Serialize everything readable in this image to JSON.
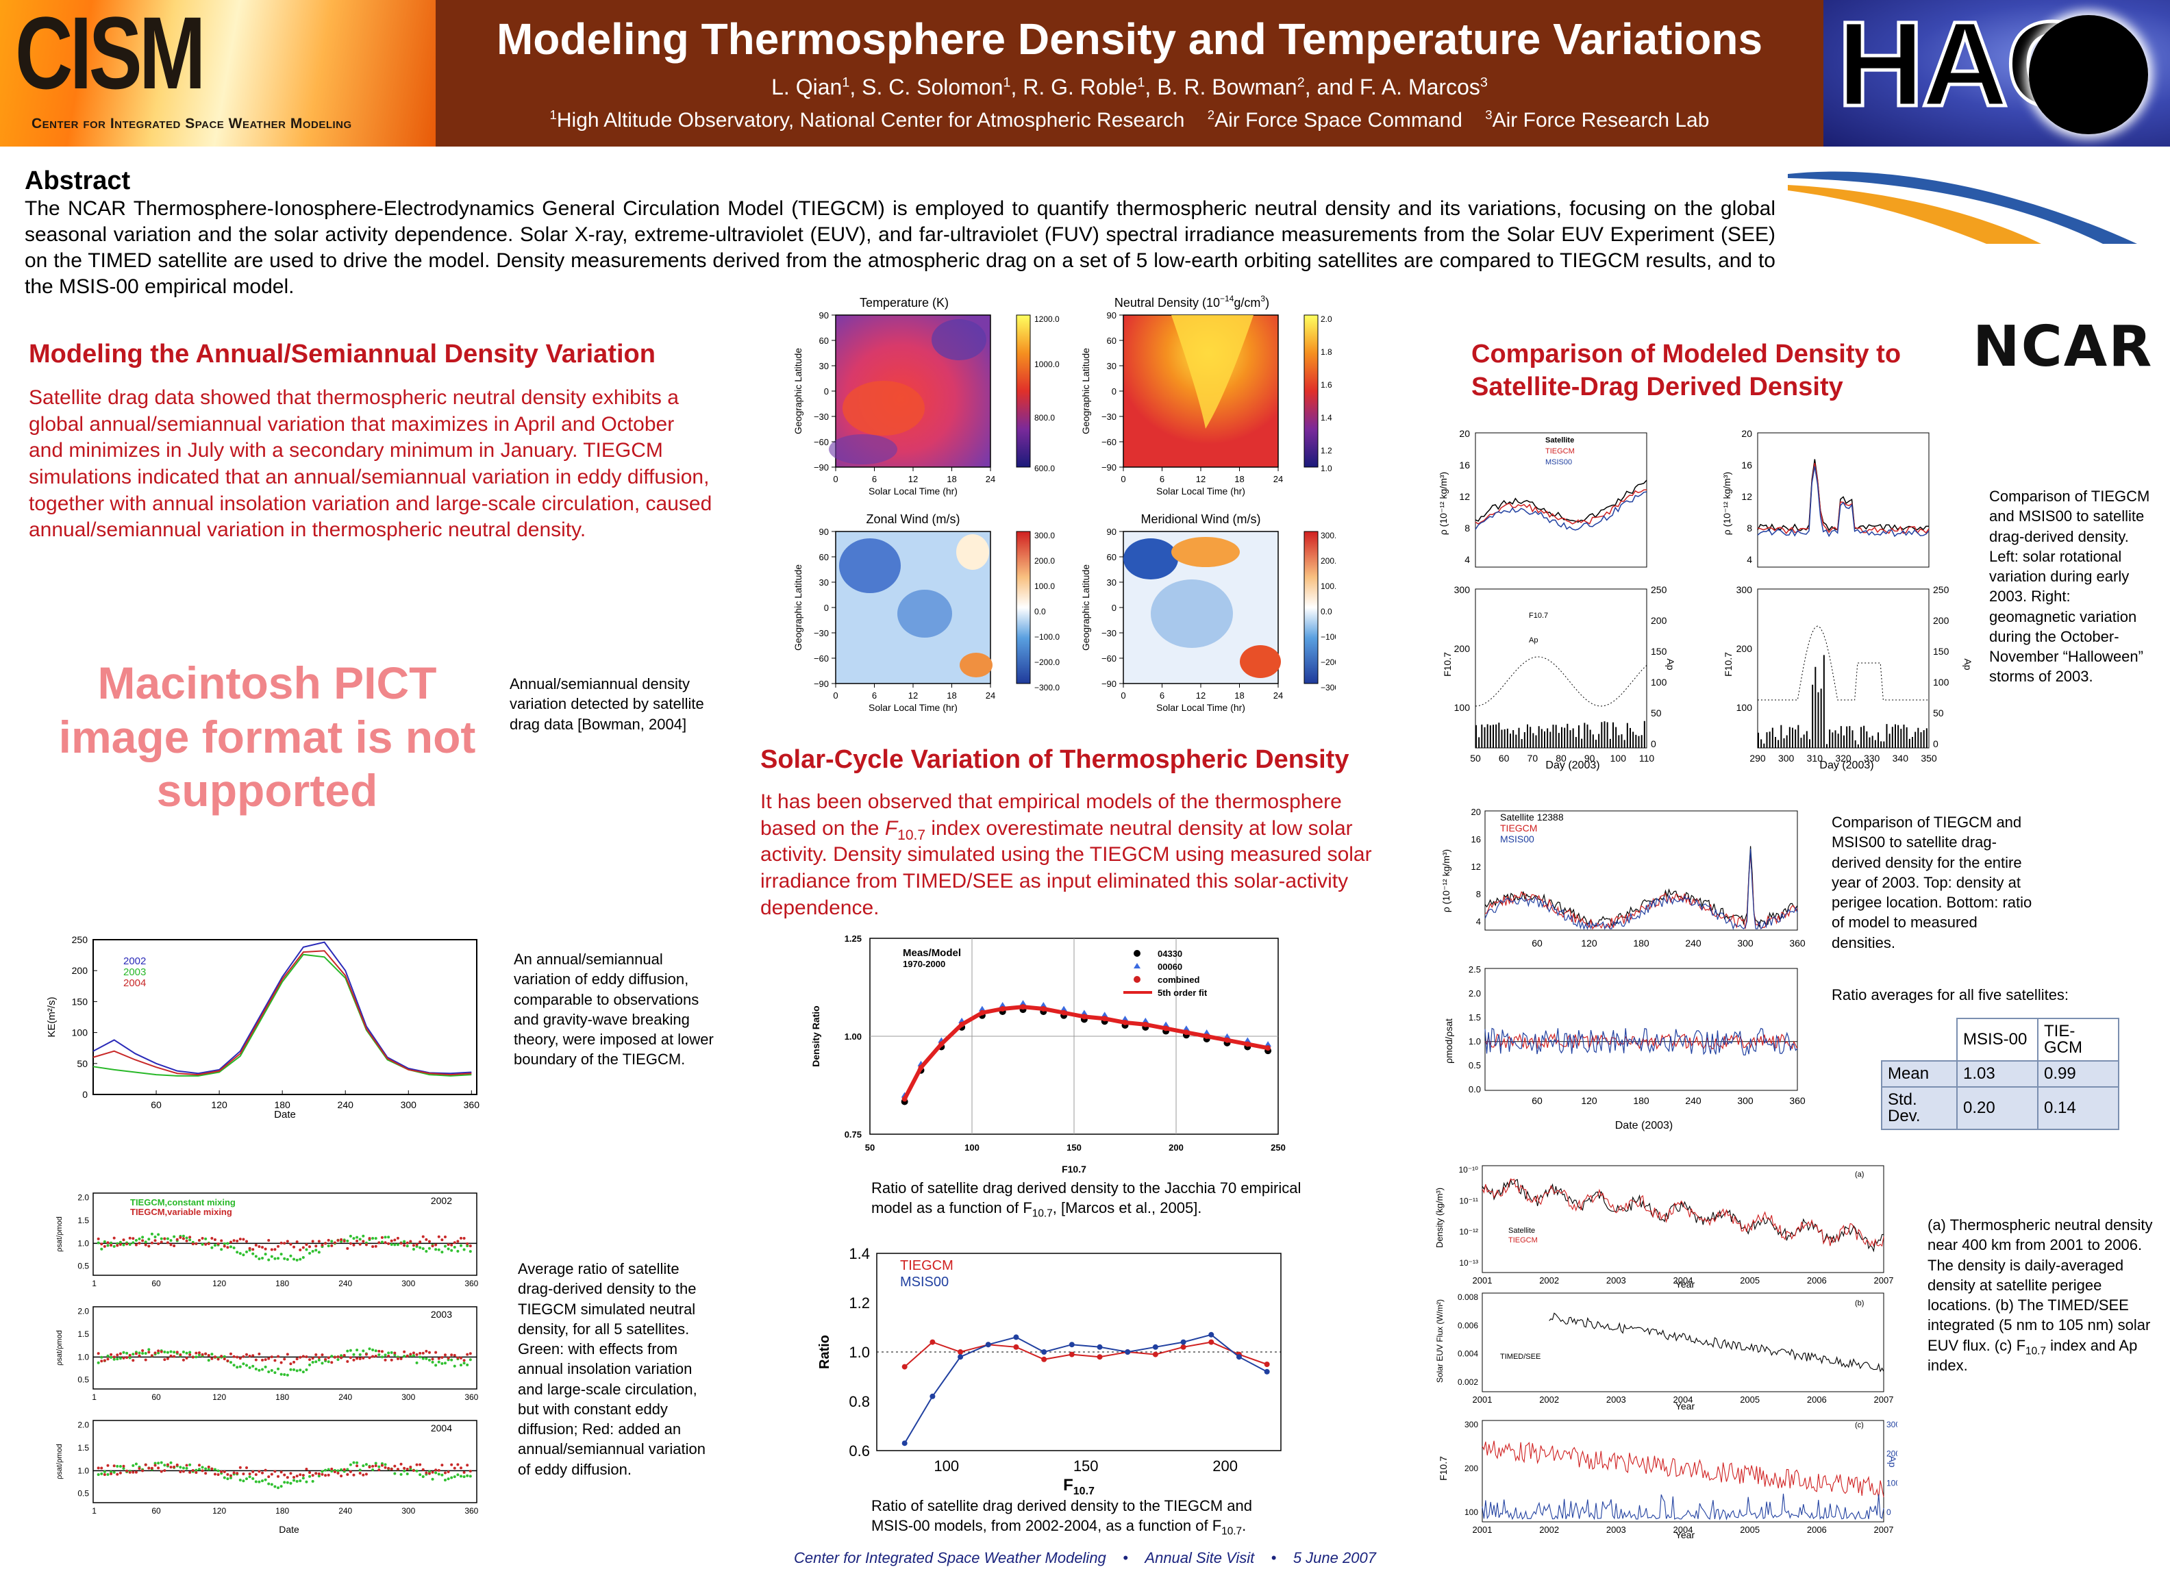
{
  "header": {
    "cism_logo": "CISM",
    "cism_full": "Center for Integrated Space Weather Modeling",
    "title": "Modeling Thermosphere Density and Temperature Variations",
    "authors": [
      {
        "name": "L. Qian",
        "sup": "1"
      },
      {
        "name": "S. C. Solomon",
        "sup": "1"
      },
      {
        "name": "R. G. Roble",
        "sup": "1"
      },
      {
        "name": "B. R. Bowman",
        "sup": "2"
      },
      {
        "name": "F. A. Marcos",
        "sup": "3"
      }
    ],
    "affiliations": [
      {
        "sup": "1",
        "name": "High Altitude Observatory, National Center for Atmospheric Research"
      },
      {
        "sup": "2",
        "name": "Air Force Space Command"
      },
      {
        "sup": "3",
        "name": "Air Force Research Lab"
      }
    ],
    "hao_logo": "HAO",
    "ncar_logo": "NCAR"
  },
  "abstract": {
    "heading": "Abstract",
    "text": "The NCAR Thermosphere-Ionosphere-Electrodynamics General Circulation Model (TIEGCM) is employed to quantify thermospheric neutral density and its variations, focusing on the global seasonal variation and the solar activity dependence.  Solar X-ray, extreme-ultraviolet (EUV), and far-ultraviolet (FUV) spectral irradiance measurements from the Solar EUV Experiment (SEE) on the TIMED satellite are used to drive the model.  Density measurements derived from the atmospheric drag on a set of 5 low-earth orbiting satellites are compared to TIEGCM results, and to the MSIS-00 empirical model."
  },
  "section1": {
    "heading": "Modeling the Annual/Semiannual Density Variation",
    "text": "Satellite drag data showed that thermospheric neutral density exhibits a global annual/semiannual variation that maximizes in April and October and minimizes in July with a secondary minimum in January. TIEGCM simulations indicated that an annual/semiannual variation in eddy diffusion, together with annual insolation variation and large-scale circulation, caused annual/semiannual variation in thermospheric neutral density.",
    "pict_placeholder": "Macintosh PICT image format is not supported",
    "pict_caption": "Annual/semiannual density variation detected by satellite drag data [Bowman, 2004]",
    "kz_caption": "An annual/semiannual variation of eddy diffusion, comparable to observations and gravity-wave breaking theory, were imposed at lower boundary of the TIEGCM.",
    "ratio_caption": "Average ratio of satellite drag-derived density to the TIEGCM simulated neutral density, for all 5 satellites. Green: with effects from annual insolation variation and large-scale circulation, but with constant eddy diffusion; Red: added an annual/semiannual variation of eddy diffusion."
  },
  "section2": {
    "heading": "Solar-Cycle Variation of Thermospheric Density",
    "text_a": "It has been observed that empirical models of the thermosphere based on the ",
    "f107": "F",
    "f107_sub": "10.7",
    "text_b": " index overestimate neutral density at low solar activity.  Density simulated using the TIEGCM using measured solar irradiance from TIMED/SEE as input eliminated this solar-activity dependence.",
    "cap1_a": "Ratio of satellite drag derived density to the Jacchia 70 empirical model as a function of F",
    "cap1_sub": "10.7",
    "cap1_b": ", [Marcos et al., 2005].",
    "cap2_a": "Ratio of satellite drag derived density to the TIEGCM and MSIS-00 models, from 2002-2004, as a function of F",
    "cap2_sub": "10.7",
    "cap2_b": "."
  },
  "section3": {
    "heading_l1": "Comparison of Modeled Density to",
    "heading_l2": "Satellite-Drag Derived Density",
    "cap_storm": "Comparison of TIEGCM and  MSIS00 to satellite drag-derived density. Left: solar rotational variation during early 2003.  Right: geomagnetic variation during the October-November “Halloween” storms of 2003.",
    "cap_year": "Comparison of TIEGCM and  MSIS00 to satellite drag-derived density for the entire year of 2003. Top: density at perigee location.  Bottom: ratio of model to measured densities.",
    "table_title": "Ratio averages for all five satellites:",
    "table": {
      "headers": [
        "MSIS-00",
        "TIE-GCM"
      ],
      "rows": [
        {
          "label": "Mean",
          "values": [
            "1.03",
            "0.99"
          ]
        },
        {
          "label": "Std. Dev.",
          "values": [
            "0.20",
            "0.14"
          ]
        }
      ]
    },
    "cap_long_a": "(a) Thermospheric neutral density near 400 km from 2001 to 2006. The density is daily-averaged density at satellite perigee locations. (b) The TIMED/SEE integrated (5 nm to 105 nm) solar EUV flux. (c) F",
    "cap_long_sub": "10.7",
    "cap_long_b": " index and Ap index."
  },
  "footer": {
    "org": "Center for Integrated Space Weather Modeling",
    "sep": "•",
    "event": "Annual Site Visit",
    "date": "5 June 2007"
  },
  "chart_data": [
    {
      "id": "temperature-map",
      "type": "heatmap",
      "title": "Temperature (K)",
      "xlabel": "Solar Local Time (hr)",
      "ylabel": "Geographic Latitude",
      "xticks": [
        "0",
        "6",
        "12",
        "18",
        "24"
      ],
      "yticks": [
        "90",
        "60",
        "30",
        "0",
        "−30",
        "−60",
        "−90"
      ],
      "colorbar_ticks": [
        "1200.0",
        "1000.0",
        "800.0",
        "600.0"
      ],
      "xlim": [
        0,
        24
      ],
      "ylim": [
        -90,
        90
      ]
    },
    {
      "id": "neutral-density-map",
      "type": "heatmap",
      "title": "Neutral Density (10",
      "title_sup": "−14",
      "title_end": "g/cm",
      "title_end_sup": "3",
      "title_close": ")",
      "xlabel": "Solar Local Time (hr)",
      "ylabel": "Geographic Latitude",
      "xticks": [
        "0",
        "6",
        "12",
        "18",
        "24"
      ],
      "yticks": [
        "90",
        "60",
        "30",
        "0",
        "−30",
        "−60",
        "−90"
      ],
      "colorbar_ticks": [
        "2.0",
        "1.8",
        "1.6",
        "1.4",
        "1.2",
        "1.0"
      ]
    },
    {
      "id": "zonal-wind-map",
      "type": "heatmap",
      "title": "Zonal Wind (m/s)",
      "xlabel": "Solar Local Time (hr)",
      "ylabel": "Geographic Latitude",
      "xticks": [
        "0",
        "6",
        "12",
        "18",
        "24"
      ],
      "yticks": [
        "90",
        "60",
        "30",
        "0",
        "−30",
        "−60",
        "−90"
      ],
      "colorbar_ticks": [
        "300.0",
        "200.0",
        "100.0",
        "0.0",
        "−100.0",
        "−200.0",
        "−300.0"
      ]
    },
    {
      "id": "meridional-wind-map",
      "type": "heatmap",
      "title": "Meridional Wind (m/s)",
      "xlabel": "Solar Local Time (hr)",
      "ylabel": "Geographic Latitude",
      "xticks": [
        "0",
        "6",
        "12",
        "18",
        "24"
      ],
      "yticks": [
        "90",
        "60",
        "30",
        "0",
        "−30",
        "−60",
        "−90"
      ],
      "colorbar_ticks": [
        "300.0",
        "200.0",
        "100.0",
        "0.0",
        "−100.0",
        "−200.0",
        "−300.0"
      ]
    },
    {
      "id": "kz-chart",
      "type": "line",
      "xlabel": "Date",
      "ylabel": "KE(m²/s)",
      "xlim": [
        0,
        365
      ],
      "ylim": [
        0,
        250
      ],
      "xticks": [
        "60",
        "120",
        "180",
        "240",
        "300",
        "360"
      ],
      "yticks": [
        "250",
        "200",
        "150",
        "100",
        "50",
        "0"
      ],
      "x": [
        0,
        20,
        40,
        60,
        80,
        100,
        120,
        140,
        160,
        180,
        200,
        220,
        240,
        260,
        280,
        300,
        320,
        340,
        360
      ],
      "series": [
        {
          "name": "2002",
          "color": "#2a2ab8",
          "values": [
            70,
            88,
            66,
            50,
            38,
            34,
            40,
            70,
            130,
            190,
            238,
            246,
            200,
            110,
            60,
            42,
            35,
            34,
            36
          ]
        },
        {
          "name": "2003",
          "color": "#28b828",
          "values": [
            45,
            40,
            36,
            32,
            30,
            30,
            36,
            62,
            122,
            182,
            226,
            222,
            188,
            104,
            56,
            40,
            32,
            30,
            32
          ]
        },
        {
          "name": "2004",
          "color": "#c82828",
          "values": [
            60,
            70,
            56,
            44,
            34,
            32,
            38,
            66,
            126,
            186,
            230,
            232,
            192,
            106,
            58,
            40,
            34,
            32,
            34
          ]
        }
      ]
    },
    {
      "id": "ratio-2002",
      "type": "scatter",
      "label": "2002",
      "ylabel": "ρsat/ρmod",
      "legend": [
        "TIEGCM,constant mixing",
        "TIEGCM,variable mixing"
      ],
      "xticks": [
        "1",
        "60",
        "120",
        "180",
        "240",
        "300",
        "360"
      ],
      "yticks": [
        "2.0",
        "1.5",
        "1.0",
        "0.5"
      ]
    },
    {
      "id": "ratio-2003",
      "type": "scatter",
      "label": "2003",
      "ylabel": "ρsat/ρmod",
      "xticks": [
        "1",
        "60",
        "120",
        "180",
        "240",
        "300",
        "360"
      ],
      "yticks": [
        "2.0",
        "1.5",
        "1.0",
        "0.5"
      ]
    },
    {
      "id": "ratio-2004",
      "type": "scatter",
      "label": "2004",
      "ylabel": "ρsat/ρmod",
      "xlabel": "Date",
      "xticks": [
        "1",
        "60",
        "120",
        "180",
        "240",
        "300",
        "360"
      ],
      "yticks": [
        "2.0",
        "1.5",
        "1.0",
        "0.5"
      ]
    },
    {
      "id": "jacchia-chart",
      "type": "scatter",
      "ylabel": "Density Ratio",
      "xlabel": "F10.7",
      "xlim": [
        50,
        250
      ],
      "ylim": [
        0.75,
        1.25
      ],
      "xticks": [
        "50",
        "100",
        "150",
        "200",
        "250"
      ],
      "yticks": [
        "1.25",
        "1.00",
        "0.75"
      ],
      "annotation_l1": "Meas/Model",
      "annotation_l2": "1970-2000",
      "legend": [
        "04330",
        "00060",
        "combined",
        "5th order fit"
      ],
      "x": [
        67,
        75,
        85,
        95,
        105,
        115,
        125,
        135,
        145,
        155,
        165,
        175,
        185,
        195,
        205,
        215,
        225,
        235,
        245
      ],
      "values": [
        0.84,
        0.92,
        0.98,
        1.03,
        1.06,
        1.07,
        1.075,
        1.07,
        1.06,
        1.05,
        1.045,
        1.035,
        1.03,
        1.02,
        1.01,
        1.0,
        0.99,
        0.98,
        0.97
      ]
    },
    {
      "id": "tiegcm-msis-chart",
      "type": "line",
      "ylabel": "Ratio",
      "xlabel": "F",
      "xlabel_sub": "10.7",
      "xlim": [
        75,
        220
      ],
      "ylim": [
        0.6,
        1.4
      ],
      "xticks": [
        "100",
        "150",
        "200"
      ],
      "yticks": [
        "1.4",
        "1.2",
        "1.0",
        "0.8",
        "0.6"
      ],
      "x": [
        85,
        95,
        105,
        115,
        125,
        135,
        145,
        155,
        165,
        175,
        185,
        195,
        205,
        215
      ],
      "series": [
        {
          "name": "TIEGCM",
          "color": "#d02020",
          "values": [
            0.94,
            1.04,
            1.0,
            1.03,
            1.02,
            0.97,
            0.99,
            0.98,
            1.0,
            0.99,
            1.02,
            1.04,
            0.99,
            0.95
          ]
        },
        {
          "name": "MSIS00",
          "color": "#2040a0",
          "values": [
            0.63,
            0.82,
            0.98,
            1.03,
            1.06,
            1.0,
            1.03,
            1.02,
            1.0,
            1.02,
            1.04,
            1.07,
            0.98,
            0.92
          ]
        }
      ]
    },
    {
      "id": "storm-early-2003",
      "type": "line",
      "ylabel": "ρ (10⁻¹² kg/m³)",
      "xlabel": "Day (2003)",
      "legend": [
        "Satellite",
        "TIEGCM",
        "MSIS00"
      ],
      "legend2": [
        "F10.7",
        "Ap"
      ],
      "xticks": [
        "50",
        "60",
        "70",
        "80",
        "90",
        "100",
        "110"
      ],
      "yticks": [
        "20",
        "16",
        "12",
        "8",
        "4"
      ],
      "f107_ticks": [
        "300",
        "200",
        "100"
      ],
      "ap_ticks": [
        "250",
        "200",
        "150",
        "100",
        "50",
        "0"
      ],
      "f107_label": "F10.7",
      "ap_label": "Ap"
    },
    {
      "id": "storm-halloween-2003",
      "type": "line",
      "ylabel": "ρ (10⁻¹² kg/m³)",
      "xlabel": "Day (2003)",
      "xticks": [
        "290",
        "300",
        "310",
        "320",
        "330",
        "340",
        "350"
      ],
      "yticks": [
        "20",
        "16",
        "12",
        "8",
        "4"
      ],
      "f107_ticks": [
        "300",
        "200",
        "100"
      ],
      "ap_ticks": [
        "250",
        "200",
        "150",
        "100",
        "50",
        "0"
      ]
    },
    {
      "id": "year-2003-density",
      "type": "line",
      "title": "Satellite 12388",
      "ylabel": "ρ (10⁻¹² kg/m³)",
      "legend": [
        "Satellite 12388",
        "TIEGCM",
        "MSIS00"
      ],
      "xticks": [
        "60",
        "120",
        "180",
        "240",
        "300",
        "360"
      ],
      "yticks": [
        "20",
        "16",
        "12",
        "8",
        "4"
      ]
    },
    {
      "id": "year-2003-ratio",
      "type": "line",
      "ylabel": "ρmod/ρsat",
      "xlabel": "Date (2003)",
      "xticks": [
        "60",
        "120",
        "180",
        "240",
        "300",
        "360"
      ],
      "yticks": [
        "2.5",
        "2.0",
        "1.5",
        "1.0",
        "0.5",
        "0.0"
      ]
    },
    {
      "id": "longterm-density",
      "type": "line",
      "label": "(a)",
      "ylabel": "Density (kg/m³)",
      "xlabel": "Year",
      "legend": [
        "Satellite",
        "TIEGCM"
      ],
      "xticks": [
        "2001",
        "2002",
        "2003",
        "2004",
        "2005",
        "2006",
        "2007"
      ],
      "yticks": [
        "10⁻¹⁰",
        "10⁻¹¹",
        "10⁻¹²",
        "10⁻¹³"
      ]
    },
    {
      "id": "longterm-euv",
      "type": "line",
      "label": "(b)",
      "ylabel": "Solar EUV Flux (W/m²)",
      "xlabel": "Year",
      "legend": [
        "TIMED/SEE"
      ],
      "xticks": [
        "2001",
        "2002",
        "2003",
        "2004",
        "2005",
        "2006",
        "2007"
      ],
      "yticks": [
        "0.008",
        "0.006",
        "0.004",
        "0.002"
      ]
    },
    {
      "id": "longterm-f107",
      "type": "line",
      "label": "(c)",
      "ylabel": "F10.7",
      "y2label": "Ap",
      "xlabel": "Year",
      "xticks": [
        "2001",
        "2002",
        "2003",
        "2004",
        "2005",
        "2006",
        "2007"
      ],
      "yticks": [
        "300",
        "200",
        "100"
      ],
      "y2ticks": [
        "300",
        "200",
        "100",
        "0"
      ]
    }
  ]
}
